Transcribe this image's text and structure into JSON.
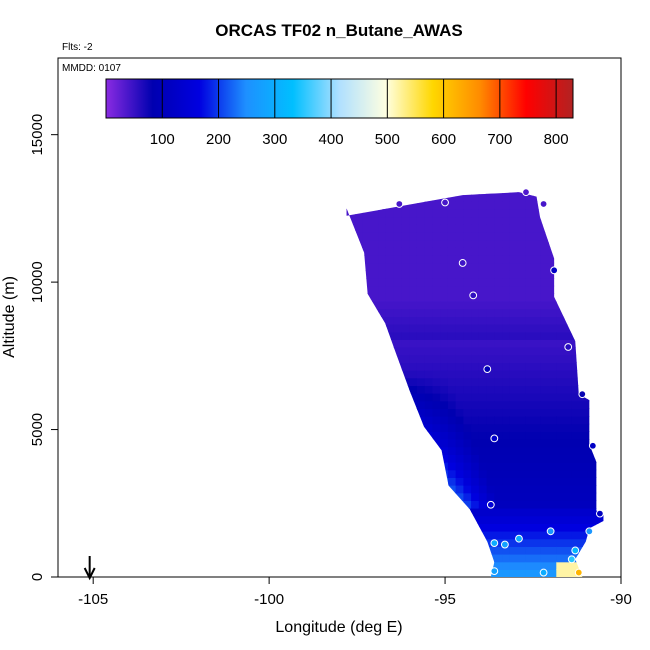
{
  "chart_data": {
    "type": "heatmap",
    "title": "ORCAS TF02 n_Butane_AWAS",
    "flights_label": "Flts: -2",
    "date_label": "MMDD: 0107",
    "xlabel": "Longitude (deg E)",
    "ylabel": "Altitude (m)",
    "xlim": [
      -106,
      -90
    ],
    "ylim": [
      0,
      17600
    ],
    "x_ticks": [
      -105,
      -100,
      -95,
      -90
    ],
    "x_tick_labels": [
      "-105",
      "-100",
      "-95",
      "-90"
    ],
    "y_ticks": [
      0,
      5000,
      10000,
      15000
    ],
    "y_tick_labels": [
      "0",
      "5000",
      "10000",
      "15000"
    ],
    "arrow_longitude": -105.1,
    "colorbar": {
      "range": [
        0,
        830
      ],
      "ticks": [
        100,
        200,
        300,
        400,
        500,
        600,
        700,
        800
      ],
      "tick_labels": [
        "100",
        "200",
        "300",
        "400",
        "500",
        "600",
        "700",
        "800"
      ],
      "colors": [
        "#8a2be2",
        "#0000b0",
        "#0000e0",
        "#1e90ff",
        "#00bfff",
        "#b0e0ff",
        "#ffffe0",
        "#ffd700",
        "#ff8c00",
        "#ff0000",
        "#b22222"
      ]
    },
    "field": {
      "upper_value": 40,
      "mid_value": 125,
      "lower_value": 270,
      "surface_value": 520
    },
    "observations": [
      {
        "x": -92.7,
        "y": 13050,
        "v": 35
      },
      {
        "x": -96.3,
        "y": 12650,
        "v": 40
      },
      {
        "x": -95.0,
        "y": 12700,
        "v": 40
      },
      {
        "x": -92.2,
        "y": 12650,
        "v": 40
      },
      {
        "x": -94.5,
        "y": 10650,
        "v": 45
      },
      {
        "x": -94.2,
        "y": 9550,
        "v": 55
      },
      {
        "x": -91.9,
        "y": 10400,
        "v": 120
      },
      {
        "x": -91.5,
        "y": 7800,
        "v": 60
      },
      {
        "x": -93.8,
        "y": 7050,
        "v": 90
      },
      {
        "x": -91.1,
        "y": 6200,
        "v": 80
      },
      {
        "x": -93.6,
        "y": 4700,
        "v": 130
      },
      {
        "x": -90.8,
        "y": 4450,
        "v": 120
      },
      {
        "x": -93.7,
        "y": 2450,
        "v": 150
      },
      {
        "x": -90.6,
        "y": 2150,
        "v": 110
      },
      {
        "x": -92.0,
        "y": 1550,
        "v": 260
      },
      {
        "x": -90.9,
        "y": 1550,
        "v": 260
      },
      {
        "x": -93.3,
        "y": 1100,
        "v": 280
      },
      {
        "x": -93.6,
        "y": 1150,
        "v": 300
      },
      {
        "x": -92.9,
        "y": 1300,
        "v": 300
      },
      {
        "x": -91.3,
        "y": 900,
        "v": 320
      },
      {
        "x": -91.4,
        "y": 600,
        "v": 350
      },
      {
        "x": -93.6,
        "y": 200,
        "v": 280
      },
      {
        "x": -92.2,
        "y": 150,
        "v": 300
      },
      {
        "x": -91.2,
        "y": 150,
        "v": 620
      }
    ]
  }
}
